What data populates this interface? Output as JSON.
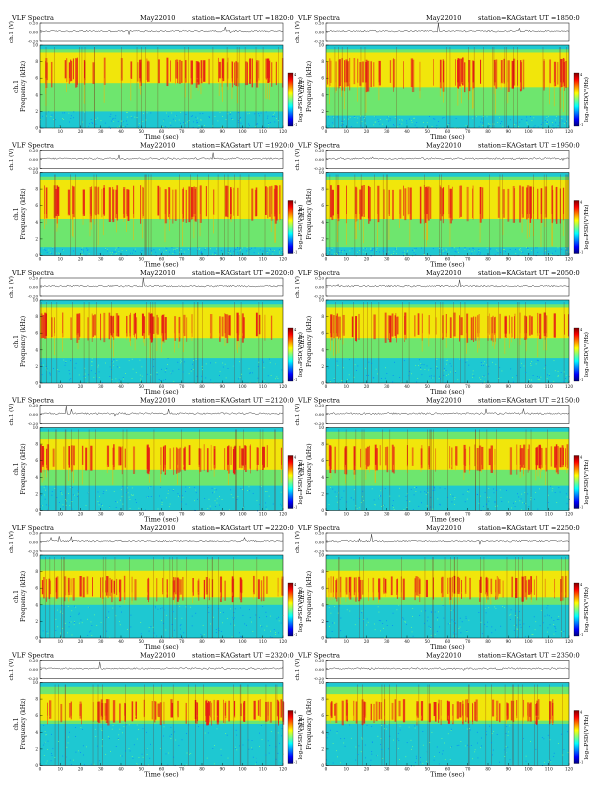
{
  "header_fields": {
    "instrument": "VLF Spectra",
    "date": "May22010",
    "station": "station=KAG",
    "start_prefix": "start  UT ="
  },
  "axis_labels": {
    "wave_ylabel": "ch.1 (V)",
    "spec_ylabel_line1": "ch.1",
    "spec_ylabel_line2": "Frequency (kHz)",
    "xlabel": "Time (sec)",
    "colorbar_label": "log₁₀PSD(V²/Hz)"
  },
  "colors": {
    "spectrogram_scale": [
      "#00007f",
      "#0000ff",
      "#007fff",
      "#00ffff",
      "#7fff7f",
      "#ffff00",
      "#ff7f00",
      "#ff0000",
      "#7f0000"
    ],
    "background_band": "#1ec8d2",
    "mid_band": "#6ee66e",
    "active_band": "#ffe600",
    "burst": "#e61e14"
  },
  "chart_data": [
    {
      "type": "heatmap",
      "start_ut": "1820:0",
      "title": "VLF Spectra  May22010  station=KAG  start UT =1820:0",
      "xlabel": "Time (sec)",
      "ylabel": "Frequency (kHz)",
      "xlim": [
        0,
        120
      ],
      "ylim": [
        0,
        10
      ],
      "x_ticks": [
        0,
        10,
        20,
        30,
        40,
        50,
        60,
        70,
        80,
        90,
        100,
        110,
        120
      ],
      "y_ticks": [
        0,
        2,
        4,
        6,
        8,
        10
      ],
      "waveform_ylim": [
        -0.2,
        0.2
      ],
      "waveform_ticks": [
        "0.20",
        "0.00",
        "-0.20"
      ],
      "emission_band_khz": [
        2,
        9.5
      ],
      "burst_band_khz": [
        6,
        8.5
      ],
      "background_band_khz": [
        9.5,
        10
      ],
      "colorbar_ticks": [
        "4",
        "-1"
      ]
    },
    {
      "type": "heatmap",
      "start_ut": "1850:0",
      "title": "VLF Spectra  May22010  station=KAG  start UT =1850:0",
      "xlabel": "Time (sec)",
      "ylabel": "Frequency (kHz)",
      "xlim": [
        0,
        120
      ],
      "ylim": [
        0,
        10
      ],
      "x_ticks": [
        0,
        10,
        20,
        30,
        40,
        50,
        60,
        70,
        80,
        90,
        100,
        110,
        120
      ],
      "y_ticks": [
        0,
        2,
        4,
        6,
        8,
        10
      ],
      "waveform_ylim": [
        -0.2,
        0.2
      ],
      "waveform_ticks": [
        "0.20",
        "0.00",
        "-0.20"
      ],
      "emission_band_khz": [
        1.5,
        9.5
      ],
      "burst_band_khz": [
        5.5,
        8.5
      ],
      "background_band_khz": [
        9.5,
        10
      ],
      "colorbar_ticks": [
        "4",
        "-1"
      ]
    },
    {
      "type": "heatmap",
      "start_ut": "1920:0",
      "title": "VLF Spectra  May22010  station=KAG  start UT =1920:0",
      "xlabel": "Time (sec)",
      "ylabel": "Frequency (kHz)",
      "xlim": [
        0,
        120
      ],
      "ylim": [
        0,
        10
      ],
      "x_ticks": [
        0,
        10,
        20,
        30,
        40,
        50,
        60,
        70,
        80,
        90,
        100,
        110,
        120
      ],
      "y_ticks": [
        0,
        2,
        4,
        6,
        8,
        10
      ],
      "waveform_ylim": [
        -0.2,
        0.2
      ],
      "waveform_ticks": [
        "0.20",
        "0.00",
        "-0.20"
      ],
      "emission_band_khz": [
        1,
        9.5
      ],
      "burst_band_khz": [
        5,
        8.5
      ],
      "background_band_khz": [
        9.5,
        10
      ],
      "colorbar_ticks": [
        "4",
        "-1"
      ]
    },
    {
      "type": "heatmap",
      "start_ut": "1950:0",
      "title": "VLF Spectra  May22010  station=KAG  start UT =1950:0",
      "xlabel": "Time (sec)",
      "ylabel": "Frequency (kHz)",
      "xlim": [
        0,
        120
      ],
      "ylim": [
        0,
        10
      ],
      "x_ticks": [
        0,
        10,
        20,
        30,
        40,
        50,
        60,
        70,
        80,
        90,
        100,
        110,
        120
      ],
      "y_ticks": [
        0,
        2,
        4,
        6,
        8,
        10
      ],
      "waveform_ylim": [
        -0.2,
        0.2
      ],
      "waveform_ticks": [
        "0.20",
        "0.00",
        "-0.20"
      ],
      "emission_band_khz": [
        1,
        9.5
      ],
      "burst_band_khz": [
        5,
        8.5
      ],
      "background_band_khz": [
        9.5,
        10
      ],
      "colorbar_ticks": [
        "4",
        "-1"
      ]
    },
    {
      "type": "heatmap",
      "start_ut": "2020:0",
      "title": "VLF Spectra  May22010  station=KAG  start UT =2020:0",
      "xlabel": "Time (sec)",
      "ylabel": "Frequency (kHz)",
      "xlim": [
        0,
        120
      ],
      "ylim": [
        0,
        10
      ],
      "x_ticks": [
        0,
        10,
        20,
        30,
        40,
        50,
        60,
        70,
        80,
        90,
        100,
        110,
        120
      ],
      "y_ticks": [
        0,
        2,
        4,
        6,
        8,
        10
      ],
      "waveform_ylim": [
        -0.2,
        0.2
      ],
      "waveform_ticks": [
        "0.20",
        "0.00",
        "-0.20"
      ],
      "emission_band_khz": [
        3,
        9.5
      ],
      "burst_band_khz": [
        6,
        8.5
      ],
      "background_band_khz": [
        9.5,
        10
      ],
      "colorbar_ticks": [
        "4",
        "-1"
      ]
    },
    {
      "type": "heatmap",
      "start_ut": "2050:0",
      "title": "VLF Spectra  May22010  station=KAG  start UT =2050:0",
      "xlabel": "Time (sec)",
      "ylabel": "Frequency (kHz)",
      "xlim": [
        0,
        120
      ],
      "ylim": [
        0,
        10
      ],
      "x_ticks": [
        0,
        10,
        20,
        30,
        40,
        50,
        60,
        70,
        80,
        90,
        100,
        110,
        120
      ],
      "y_ticks": [
        0,
        2,
        4,
        6,
        8,
        10
      ],
      "waveform_ylim": [
        -0.2,
        0.2
      ],
      "waveform_ticks": [
        "0.20",
        "0.00",
        "-0.20"
      ],
      "emission_band_khz": [
        3,
        9.5
      ],
      "burst_band_khz": [
        6,
        8.5
      ],
      "background_band_khz": [
        9.5,
        10
      ],
      "colorbar_ticks": [
        "4",
        "-1"
      ]
    },
    {
      "type": "heatmap",
      "start_ut": "2120:0",
      "title": "VLF Spectra  May22010  station=KAG  start UT =2120:0",
      "xlabel": "Time (sec)",
      "ylabel": "Frequency (kHz)",
      "xlim": [
        0,
        120
      ],
      "ylim": [
        0,
        10
      ],
      "x_ticks": [
        0,
        10,
        20,
        30,
        40,
        50,
        60,
        70,
        80,
        90,
        100,
        110,
        120
      ],
      "y_ticks": [
        0,
        2,
        4,
        6,
        8,
        10
      ],
      "waveform_ylim": [
        -0.2,
        0.2
      ],
      "waveform_ticks": [
        "0.20",
        "0.00",
        "-0.20"
      ],
      "emission_band_khz": [
        3,
        9.5
      ],
      "burst_band_khz": [
        5.5,
        8
      ],
      "background_band_khz": [
        9.5,
        10
      ],
      "colorbar_ticks": [
        "4",
        "-1"
      ]
    },
    {
      "type": "heatmap",
      "start_ut": "2150:0",
      "title": "VLF Spectra  May22010  station=KAG  start UT =2150:0",
      "xlabel": "Time (sec)",
      "ylabel": "Frequency (kHz)",
      "xlim": [
        0,
        120
      ],
      "ylim": [
        0,
        10
      ],
      "x_ticks": [
        0,
        10,
        20,
        30,
        40,
        50,
        60,
        70,
        80,
        90,
        100,
        110,
        120
      ],
      "y_ticks": [
        0,
        2,
        4,
        6,
        8,
        10
      ],
      "waveform_ylim": [
        -0.2,
        0.2
      ],
      "waveform_ticks": [
        "0.20",
        "0.00",
        "-0.20"
      ],
      "emission_band_khz": [
        3,
        9.5
      ],
      "burst_band_khz": [
        5.5,
        8
      ],
      "background_band_khz": [
        9.5,
        10
      ],
      "colorbar_ticks": [
        "4",
        "-1"
      ]
    },
    {
      "type": "heatmap",
      "start_ut": "2220:0",
      "title": "VLF Spectra  May22010  station=KAG  start UT =2220:0",
      "xlabel": "Time (sec)",
      "ylabel": "Frequency (kHz)",
      "xlim": [
        0,
        120
      ],
      "ylim": [
        0,
        10
      ],
      "x_ticks": [
        0,
        10,
        20,
        30,
        40,
        50,
        60,
        70,
        80,
        90,
        100,
        110,
        120
      ],
      "y_ticks": [
        0,
        2,
        4,
        6,
        8,
        10
      ],
      "waveform_ylim": [
        -0.2,
        0.2
      ],
      "waveform_ticks": [
        "0.20",
        "0.00",
        "-0.20"
      ],
      "emission_band_khz": [
        4,
        9.5
      ],
      "burst_band_khz": [
        5.5,
        7.5
      ],
      "background_band_khz": [
        9.5,
        10
      ],
      "colorbar_ticks": [
        "4",
        "-1"
      ]
    },
    {
      "type": "heatmap",
      "start_ut": "2250:0",
      "title": "VLF Spectra  May22010  station=KAG  start UT =2250:0",
      "xlabel": "Time (sec)",
      "ylabel": "Frequency (kHz)",
      "xlim": [
        0,
        120
      ],
      "ylim": [
        0,
        10
      ],
      "x_ticks": [
        0,
        10,
        20,
        30,
        40,
        50,
        60,
        70,
        80,
        90,
        100,
        110,
        120
      ],
      "y_ticks": [
        0,
        2,
        4,
        6,
        8,
        10
      ],
      "waveform_ylim": [
        -0.2,
        0.2
      ],
      "waveform_ticks": [
        "0.20",
        "0.00",
        "-0.20"
      ],
      "emission_band_khz": [
        4,
        9.5
      ],
      "burst_band_khz": [
        5.5,
        7.5
      ],
      "background_band_khz": [
        9.5,
        10
      ],
      "colorbar_ticks": [
        "4",
        "-1"
      ]
    },
    {
      "type": "heatmap",
      "start_ut": "2320:0",
      "title": "VLF Spectra  May22010  station=KAG  start UT =2320:0",
      "xlabel": "Time (sec)",
      "ylabel": "Frequency (kHz)",
      "xlim": [
        0,
        120
      ],
      "ylim": [
        0,
        10
      ],
      "x_ticks": [
        0,
        10,
        20,
        30,
        40,
        50,
        60,
        70,
        80,
        90,
        100,
        110,
        120
      ],
      "y_ticks": [
        0,
        2,
        4,
        6,
        8,
        10
      ],
      "waveform_ylim": [
        -0.2,
        0.2
      ],
      "waveform_ticks": [
        "0.20",
        "0.00",
        "-0.20"
      ],
      "emission_band_khz": [
        5,
        9.5
      ],
      "burst_band_khz": [
        6,
        8
      ],
      "background_band_khz": [
        9.5,
        10
      ],
      "colorbar_ticks": [
        "4",
        "-1"
      ]
    },
    {
      "type": "heatmap",
      "start_ut": "2350:0",
      "title": "VLF Spectra  May22010  station=KAG  start UT =2350:0",
      "xlabel": "Time (sec)",
      "ylabel": "Frequency (kHz)",
      "xlim": [
        0,
        120
      ],
      "ylim": [
        0,
        10
      ],
      "x_ticks": [
        0,
        10,
        20,
        30,
        40,
        50,
        60,
        70,
        80,
        90,
        100,
        110,
        120
      ],
      "y_ticks": [
        0,
        2,
        4,
        6,
        8,
        10
      ],
      "waveform_ylim": [
        -0.2,
        0.2
      ],
      "waveform_ticks": [
        "0.20",
        "0.00",
        "-0.20"
      ],
      "emission_band_khz": [
        5,
        9.5
      ],
      "burst_band_khz": [
        6,
        8
      ],
      "background_band_khz": [
        9.5,
        10
      ],
      "colorbar_ticks": [
        "4",
        "-1"
      ]
    }
  ]
}
